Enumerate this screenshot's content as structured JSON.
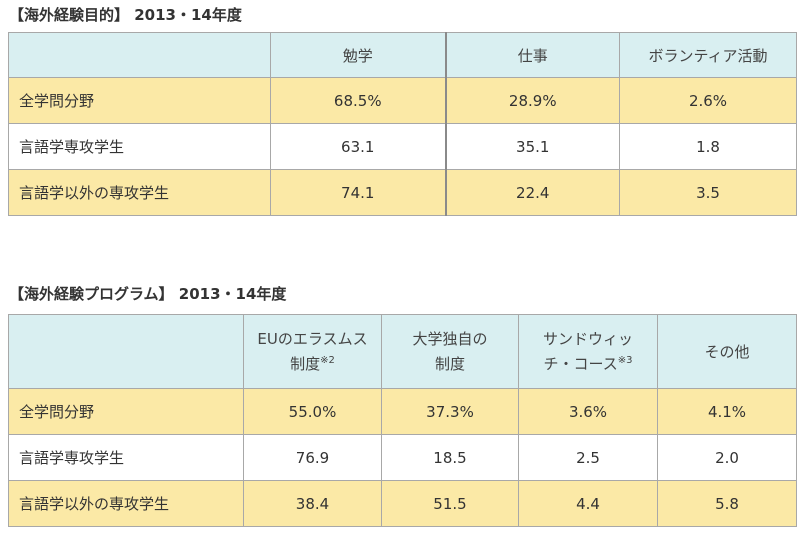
{
  "table1": {
    "title": "【海外経験目的】 2013・14年度",
    "headers": [
      "",
      "勉学",
      "仕事",
      "ボランティア活動"
    ],
    "rows": [
      {
        "label": "全学問分野",
        "values": [
          "68.5%",
          "28.9%",
          "2.6%"
        ]
      },
      {
        "label": "言語学専攻学生",
        "values": [
          "63.1",
          "35.1",
          "1.8"
        ]
      },
      {
        "label": "言語学以外の専攻学生",
        "values": [
          "74.1",
          "22.4",
          "3.5"
        ]
      }
    ]
  },
  "table2": {
    "title": "【海外経験プログラム】 2013・14年度",
    "headers": [
      {
        "line1": "EUのエラスムス",
        "line2": "制度",
        "note": "※2"
      },
      {
        "line1": "大学独自の",
        "line2": "制度",
        "note": ""
      },
      {
        "line1": "サンドウィッ",
        "line2": "チ・コース",
        "note": "※3"
      },
      {
        "line1": "その他",
        "line2": "",
        "note": ""
      }
    ],
    "rows": [
      {
        "label": "全学問分野",
        "values": [
          "55.0%",
          "37.3%",
          "3.6%",
          "4.1%"
        ]
      },
      {
        "label": "言語学専攻学生",
        "values": [
          "76.9",
          "18.5",
          "2.5",
          "2.0"
        ]
      },
      {
        "label": "言語学以外の専攻学生",
        "values": [
          "38.4",
          "51.5",
          "4.4",
          "5.8"
        ]
      }
    ]
  },
  "colors": {
    "header_bg": "#d9eff1",
    "highlight_row_bg": "#fbe9a6",
    "border": "#a8a8a8"
  }
}
